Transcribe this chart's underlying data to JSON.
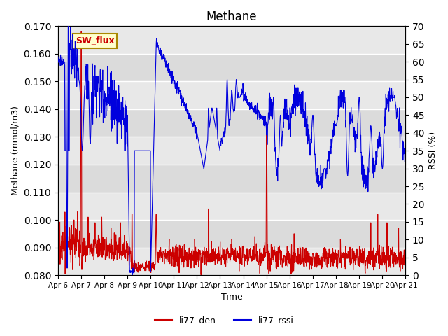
{
  "title": "Methane",
  "xlabel": "Time",
  "ylabel_left": "Methane (mmol/m3)",
  "ylabel_right": "RSSI (%)",
  "ylim_left": [
    0.08,
    0.17
  ],
  "ylim_right": [
    0,
    70
  ],
  "yticks_left": [
    0.08,
    0.09,
    0.1,
    0.11,
    0.12,
    0.13,
    0.14,
    0.15,
    0.16,
    0.17
  ],
  "yticks_right": [
    0,
    5,
    10,
    15,
    20,
    25,
    30,
    35,
    40,
    45,
    50,
    55,
    60,
    65,
    70
  ],
  "xtick_labels": [
    "Apr 6",
    "Apr 7",
    "Apr 8",
    "Apr 9",
    "Apr 10",
    "Apr 11",
    "Apr 12",
    "Apr 13",
    "Apr 14",
    "Apr 15",
    "Apr 16",
    "Apr 17",
    "Apr 18",
    "Apr 19",
    "Apr 20",
    "Apr 21"
  ],
  "color_red": "#cc0000",
  "color_blue": "#0000dd",
  "legend_entries": [
    "li77_den",
    "li77_rssi"
  ],
  "annotation_text": "SW_flux",
  "annotation_color": "#aa8800",
  "annotation_bg": "#ffffcc",
  "annotation_text_color": "#cc0000",
  "background_color": "#e8e8e8",
  "grid_color": "#ffffff",
  "n_points": 1500
}
